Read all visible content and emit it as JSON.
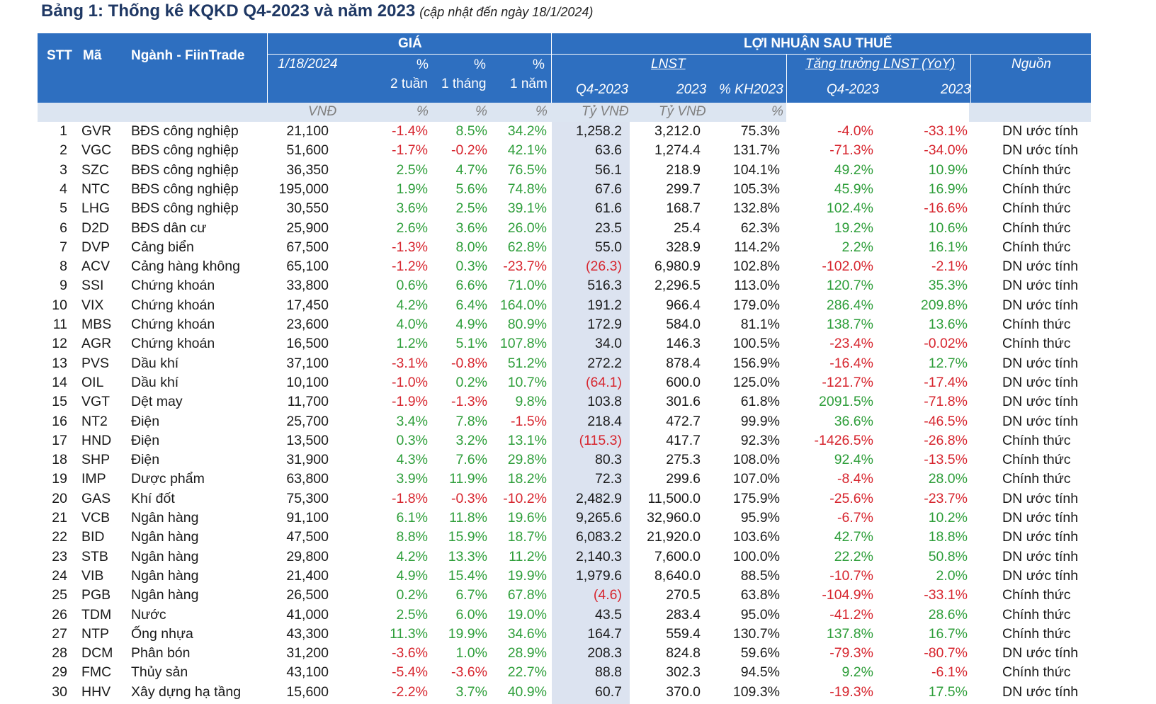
{
  "title": "Bảng 1: Thống kê KQKD Q4-2023 và năm 2023",
  "subtitle": "(cập nhật đến ngày 18/1/2024)",
  "header": {
    "stt": "STT",
    "ma": "Mã",
    "nganh": "Ngành - FiinTrade",
    "gia": "GIÁ",
    "loi_nhuan": "LỢI NHUẬN SAU THUẾ",
    "date": "1/18/2024",
    "pct": "%",
    "two_weeks": "2 tuần",
    "one_month": "1 tháng",
    "one_year": "1 năm",
    "lnst": "LNST",
    "tang_truong": "Tăng trưởng LNST (YoY)",
    "nguon": "Nguồn",
    "q4": "Q4-2023",
    "y2023": "2023",
    "kh": "% KH2023",
    "q4b": "Q4-2023",
    "y2023b": "2023"
  },
  "units": {
    "price": "VNĐ",
    "p2w": "%",
    "p1m": "%",
    "p1y": "%",
    "q4": "Tỷ VNĐ",
    "y2023": "Tỷ VNĐ",
    "kh": "%"
  },
  "colors": {
    "header_bg": "#2e6fc0",
    "unit_band": "#dce5f1",
    "highlight_col": "#dce3f0",
    "positive": "#2e9e3a",
    "negative": "#d7262f",
    "title": "#1f3864"
  },
  "rows": [
    {
      "stt": "1",
      "ma": "GVR",
      "nganh": "BĐS công nghiệp",
      "price": "21,100",
      "p2w": "-1.4%",
      "p1m": "8.5%",
      "p1y": "34.2%",
      "q4": "1,258.2",
      "y2023": "3,212.0",
      "kh": "75.3%",
      "g_q4": "-4.0%",
      "g_y": "-33.1%",
      "nguon": "DN ước tính"
    },
    {
      "stt": "2",
      "ma": "VGC",
      "nganh": "BĐS công nghiệp",
      "price": "51,600",
      "p2w": "-1.7%",
      "p1m": "-0.2%",
      "p1y": "42.1%",
      "q4": "63.6",
      "y2023": "1,274.4",
      "kh": "131.7%",
      "g_q4": "-71.3%",
      "g_y": "-34.0%",
      "nguon": "DN ước tính"
    },
    {
      "stt": "3",
      "ma": "SZC",
      "nganh": "BĐS công nghiệp",
      "price": "36,350",
      "p2w": "2.5%",
      "p1m": "4.7%",
      "p1y": "76.5%",
      "q4": "56.1",
      "y2023": "218.9",
      "kh": "104.1%",
      "g_q4": "49.2%",
      "g_y": "10.9%",
      "nguon": "Chính thức"
    },
    {
      "stt": "4",
      "ma": "NTC",
      "nganh": "BĐS công nghiệp",
      "price": "195,000",
      "p2w": "1.9%",
      "p1m": "5.6%",
      "p1y": "74.8%",
      "q4": "67.6",
      "y2023": "299.7",
      "kh": "105.3%",
      "g_q4": "45.9%",
      "g_y": "16.9%",
      "nguon": "Chính thức"
    },
    {
      "stt": "5",
      "ma": "LHG",
      "nganh": "BĐS công nghiệp",
      "price": "30,550",
      "p2w": "3.6%",
      "p1m": "2.5%",
      "p1y": "39.1%",
      "q4": "61.6",
      "y2023": "168.7",
      "kh": "132.8%",
      "g_q4": "102.4%",
      "g_y": "-16.6%",
      "nguon": "Chính thức"
    },
    {
      "stt": "6",
      "ma": "D2D",
      "nganh": "BĐS dân cư",
      "price": "25,900",
      "p2w": "2.6%",
      "p1m": "3.6%",
      "p1y": "26.0%",
      "q4": "23.5",
      "y2023": "25.4",
      "kh": "62.3%",
      "g_q4": "19.2%",
      "g_y": "10.6%",
      "nguon": "Chính thức"
    },
    {
      "stt": "7",
      "ma": "DVP",
      "nganh": "Cảng biển",
      "price": "67,500",
      "p2w": "-1.3%",
      "p1m": "8.0%",
      "p1y": "62.8%",
      "q4": "55.0",
      "y2023": "328.9",
      "kh": "114.2%",
      "g_q4": "2.2%",
      "g_y": "16.1%",
      "nguon": "Chính thức"
    },
    {
      "stt": "8",
      "ma": "ACV",
      "nganh": "Cảng hàng không",
      "price": "65,100",
      "p2w": "-1.2%",
      "p1m": "0.3%",
      "p1y": "-23.7%",
      "q4": "(26.3)",
      "y2023": "6,980.9",
      "kh": "102.8%",
      "g_q4": "-102.0%",
      "g_y": "-2.1%",
      "nguon": "DN ước tính"
    },
    {
      "stt": "9",
      "ma": "SSI",
      "nganh": "Chứng khoán",
      "price": "33,800",
      "p2w": "0.6%",
      "p1m": "6.6%",
      "p1y": "71.0%",
      "q4": "516.3",
      "y2023": "2,296.5",
      "kh": "113.0%",
      "g_q4": "120.7%",
      "g_y": "35.3%",
      "nguon": "DN ước tính"
    },
    {
      "stt": "10",
      "ma": "VIX",
      "nganh": "Chứng khoán",
      "price": "17,450",
      "p2w": "4.2%",
      "p1m": "6.4%",
      "p1y": "164.0%",
      "q4": "191.2",
      "y2023": "966.4",
      "kh": "179.0%",
      "g_q4": "286.4%",
      "g_y": "209.8%",
      "nguon": "DN ước tính"
    },
    {
      "stt": "11",
      "ma": "MBS",
      "nganh": "Chứng khoán",
      "price": "23,600",
      "p2w": "4.0%",
      "p1m": "4.9%",
      "p1y": "80.9%",
      "q4": "172.9",
      "y2023": "584.0",
      "kh": "81.1%",
      "g_q4": "138.7%",
      "g_y": "13.6%",
      "nguon": "Chính thức"
    },
    {
      "stt": "12",
      "ma": "AGR",
      "nganh": "Chứng khoán",
      "price": "16,500",
      "p2w": "1.2%",
      "p1m": "5.1%",
      "p1y": "107.8%",
      "q4": "34.0",
      "y2023": "146.3",
      "kh": "100.5%",
      "g_q4": "-23.4%",
      "g_y": "-0.02%",
      "nguon": "Chính thức"
    },
    {
      "stt": "13",
      "ma": "PVS",
      "nganh": "Dầu khí",
      "price": "37,100",
      "p2w": "-3.1%",
      "p1m": "-0.8%",
      "p1y": "51.2%",
      "q4": "272.2",
      "y2023": "878.4",
      "kh": "156.9%",
      "g_q4": "-16.4%",
      "g_y": "12.7%",
      "nguon": "DN ước tính"
    },
    {
      "stt": "14",
      "ma": "OIL",
      "nganh": "Dầu khí",
      "price": "10,100",
      "p2w": "-1.0%",
      "p1m": "0.2%",
      "p1y": "10.7%",
      "q4": "(64.1)",
      "y2023": "600.0",
      "kh": "125.0%",
      "g_q4": "-121.7%",
      "g_y": "-17.4%",
      "nguon": "DN ước tính"
    },
    {
      "stt": "15",
      "ma": "VGT",
      "nganh": "Dệt may",
      "price": "11,700",
      "p2w": "-1.9%",
      "p1m": "-1.3%",
      "p1y": "9.8%",
      "q4": "103.8",
      "y2023": "301.6",
      "kh": "61.8%",
      "g_q4": "2091.5%",
      "g_y": "-71.8%",
      "nguon": "DN ước tính"
    },
    {
      "stt": "16",
      "ma": "NT2",
      "nganh": "Điện",
      "price": "25,700",
      "p2w": "3.4%",
      "p1m": "7.8%",
      "p1y": "-1.5%",
      "q4": "218.4",
      "y2023": "472.7",
      "kh": "99.9%",
      "g_q4": "36.6%",
      "g_y": "-46.5%",
      "nguon": "DN ước tính"
    },
    {
      "stt": "17",
      "ma": "HND",
      "nganh": "Điện",
      "price": "13,500",
      "p2w": "0.3%",
      "p1m": "3.2%",
      "p1y": "13.1%",
      "q4": "(115.3)",
      "y2023": "417.7",
      "kh": "92.3%",
      "g_q4": "-1426.5%",
      "g_y": "-26.8%",
      "nguon": "Chính thức"
    },
    {
      "stt": "18",
      "ma": "SHP",
      "nganh": "Điện",
      "price": "31,900",
      "p2w": "4.3%",
      "p1m": "7.6%",
      "p1y": "29.8%",
      "q4": "80.3",
      "y2023": "275.3",
      "kh": "108.0%",
      "g_q4": "92.4%",
      "g_y": "-13.5%",
      "nguon": "Chính thức"
    },
    {
      "stt": "19",
      "ma": "IMP",
      "nganh": "Dược phẩm",
      "price": "63,800",
      "p2w": "3.9%",
      "p1m": "11.9%",
      "p1y": "18.2%",
      "q4": "72.3",
      "y2023": "299.6",
      "kh": "107.0%",
      "g_q4": "-8.4%",
      "g_y": "28.0%",
      "nguon": "Chính thức"
    },
    {
      "stt": "20",
      "ma": "GAS",
      "nganh": "Khí đốt",
      "price": "75,300",
      "p2w": "-1.8%",
      "p1m": "-0.3%",
      "p1y": "-10.2%",
      "q4": "2,482.9",
      "y2023": "11,500.0",
      "kh": "175.9%",
      "g_q4": "-25.6%",
      "g_y": "-23.7%",
      "nguon": "DN ước tính"
    },
    {
      "stt": "21",
      "ma": "VCB",
      "nganh": "Ngân hàng",
      "price": "91,100",
      "p2w": "6.1%",
      "p1m": "11.8%",
      "p1y": "19.6%",
      "q4": "9,265.6",
      "y2023": "32,960.0",
      "kh": "95.9%",
      "g_q4": "-6.7%",
      "g_y": "10.2%",
      "nguon": "DN ước tính"
    },
    {
      "stt": "22",
      "ma": "BID",
      "nganh": "Ngân hàng",
      "price": "47,500",
      "p2w": "8.8%",
      "p1m": "15.9%",
      "p1y": "18.7%",
      "q4": "6,083.2",
      "y2023": "21,920.0",
      "kh": "103.6%",
      "g_q4": "42.7%",
      "g_y": "18.8%",
      "nguon": "DN ước tính"
    },
    {
      "stt": "23",
      "ma": "STB",
      "nganh": "Ngân hàng",
      "price": "29,800",
      "p2w": "4.2%",
      "p1m": "13.3%",
      "p1y": "11.2%",
      "q4": "2,140.3",
      "y2023": "7,600.0",
      "kh": "100.0%",
      "g_q4": "22.2%",
      "g_y": "50.8%",
      "nguon": "DN ước tính"
    },
    {
      "stt": "24",
      "ma": "VIB",
      "nganh": "Ngân hàng",
      "price": "21,400",
      "p2w": "4.9%",
      "p1m": "15.4%",
      "p1y": "19.9%",
      "q4": "1,979.6",
      "y2023": "8,640.0",
      "kh": "88.5%",
      "g_q4": "-10.7%",
      "g_y": "2.0%",
      "nguon": "DN ước tính"
    },
    {
      "stt": "25",
      "ma": "PGB",
      "nganh": "Ngân hàng",
      "price": "26,500",
      "p2w": "0.2%",
      "p1m": "6.7%",
      "p1y": "67.8%",
      "q4": "(4.6)",
      "y2023": "270.5",
      "kh": "63.8%",
      "g_q4": "-104.9%",
      "g_y": "-33.1%",
      "nguon": "Chính thức"
    },
    {
      "stt": "26",
      "ma": "TDM",
      "nganh": "Nước",
      "price": "41,000",
      "p2w": "2.5%",
      "p1m": "6.0%",
      "p1y": "19.0%",
      "q4": "43.5",
      "y2023": "283.4",
      "kh": "95.0%",
      "g_q4": "-41.2%",
      "g_y": "28.6%",
      "nguon": "Chính thức"
    },
    {
      "stt": "27",
      "ma": "NTP",
      "nganh": "Ống nhựa",
      "price": "43,300",
      "p2w": "11.3%",
      "p1m": "19.9%",
      "p1y": "34.6%",
      "q4": "164.7",
      "y2023": "559.4",
      "kh": "130.7%",
      "g_q4": "137.8%",
      "g_y": "16.7%",
      "nguon": "Chính thức"
    },
    {
      "stt": "28",
      "ma": "DCM",
      "nganh": "Phân bón",
      "price": "31,200",
      "p2w": "-3.6%",
      "p1m": "1.0%",
      "p1y": "28.9%",
      "q4": "208.3",
      "y2023": "824.8",
      "kh": "59.6%",
      "g_q4": "-79.3%",
      "g_y": "-80.7%",
      "nguon": "DN ước tính"
    },
    {
      "stt": "29",
      "ma": "FMC",
      "nganh": "Thủy sản",
      "price": "43,100",
      "p2w": "-5.4%",
      "p1m": "-3.6%",
      "p1y": "22.7%",
      "q4": "88.8",
      "y2023": "302.3",
      "kh": "94.5%",
      "g_q4": "9.2%",
      "g_y": "-6.1%",
      "nguon": "Chính thức"
    },
    {
      "stt": "30",
      "ma": "HHV",
      "nganh": "Xây dựng hạ tầng",
      "price": "15,600",
      "p2w": "-2.2%",
      "p1m": "3.7%",
      "p1y": "40.9%",
      "q4": "60.7",
      "y2023": "370.0",
      "kh": "109.3%",
      "g_q4": "-19.3%",
      "g_y": "17.5%",
      "nguon": "DN ước tính"
    }
  ]
}
